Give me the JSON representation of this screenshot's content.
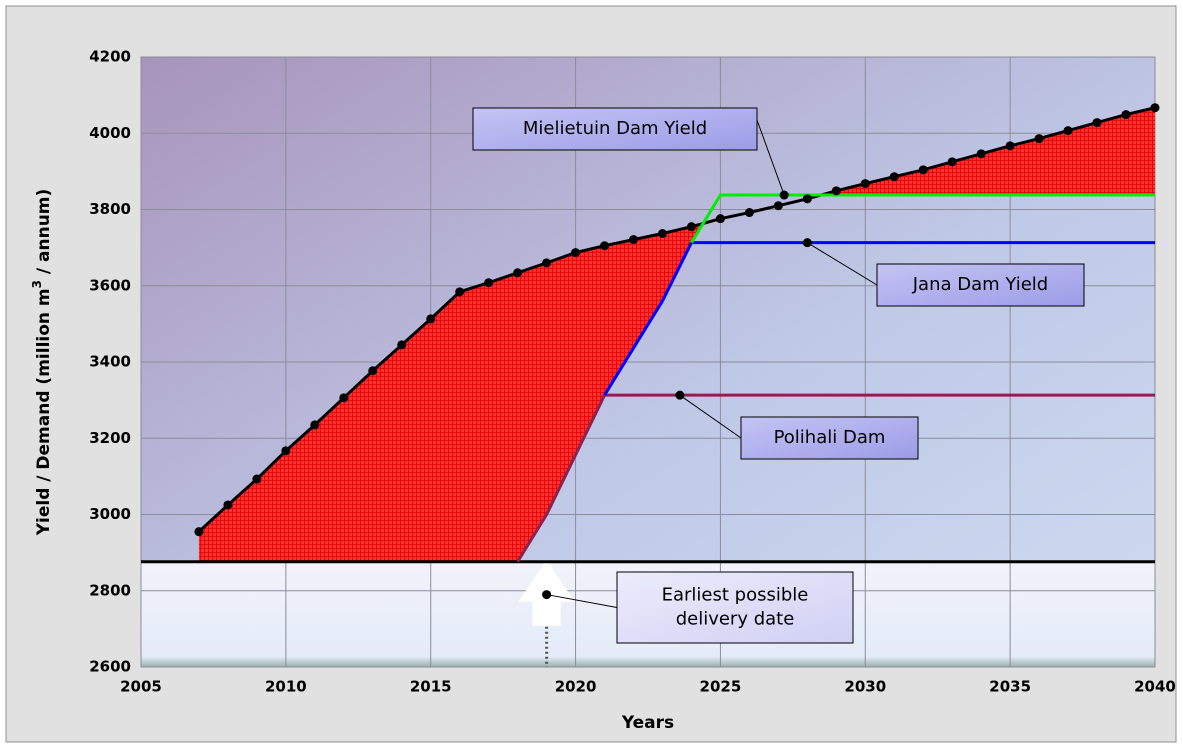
{
  "chart_data": {
    "type": "line",
    "xlabel": "Years",
    "ylabel": [
      "Yield / Demand (million m",
      "3",
      " / annum)"
    ],
    "xlim": [
      2005,
      2040
    ],
    "xticks": [
      2005,
      2010,
      2015,
      2020,
      2025,
      2030,
      2035,
      2040
    ],
    "ylim": [
      2600,
      4200
    ],
    "yticks": [
      2600,
      2800,
      3000,
      3200,
      3400,
      3600,
      3800,
      4000,
      4200
    ],
    "grid": true,
    "series": [
      {
        "color": "#000000",
        "markers": true,
        "x": [
          2007,
          2008,
          2009,
          2010,
          2011,
          2012,
          2013,
          2014,
          2015,
          2016,
          2017,
          2018,
          2019,
          2020,
          2021,
          2022,
          2023,
          2024,
          2025,
          2026,
          2027,
          2028,
          2029,
          2030,
          2031,
          2032,
          2033,
          2034,
          2035,
          2036,
          2037,
          2038,
          2039,
          2040
        ],
        "values": [
          2955,
          3025,
          3093,
          3167,
          3235,
          3306,
          3377,
          3445,
          3513,
          3584,
          3608,
          3634,
          3660,
          3687,
          3705,
          3721,
          3737,
          3755,
          3776,
          3792,
          3810,
          3828,
          3849,
          3868,
          3886,
          3904,
          3925,
          3946,
          3967,
          3986,
          4007,
          4028,
          4049,
          4067
        ]
      },
      {
        "color": "#000000",
        "x": [
          2005,
          2040
        ],
        "values": [
          2876,
          2876
        ]
      },
      {
        "color": "#8b2252",
        "x": [
          2018,
          2019,
          2021,
          2040
        ],
        "values": [
          2876,
          3000,
          3313,
          3313
        ]
      },
      {
        "color": "#0000ff",
        "x": [
          2021,
          2023,
          2024,
          2040
        ],
        "values": [
          3313,
          3560,
          3713,
          3713
        ]
      },
      {
        "color": "#00ee00",
        "x": [
          2024,
          2025,
          2040
        ],
        "values": [
          3713,
          3838,
          3838
        ]
      }
    ],
    "fill_color": "#ff2020",
    "annotations": [
      {
        "lines": [
          "Mielietuin Dam Yield"
        ],
        "x": 2027.2,
        "y": 3838
      },
      {
        "lines": [
          "Jana Dam Yield"
        ],
        "x": 2028,
        "y": 3713
      },
      {
        "lines": [
          "Polihali Dam"
        ],
        "x": 2023.6,
        "y": 3313
      },
      {
        "lines": [
          "Earliest possible",
          "delivery date"
        ],
        "x": 2019,
        "y": 2790
      }
    ]
  }
}
